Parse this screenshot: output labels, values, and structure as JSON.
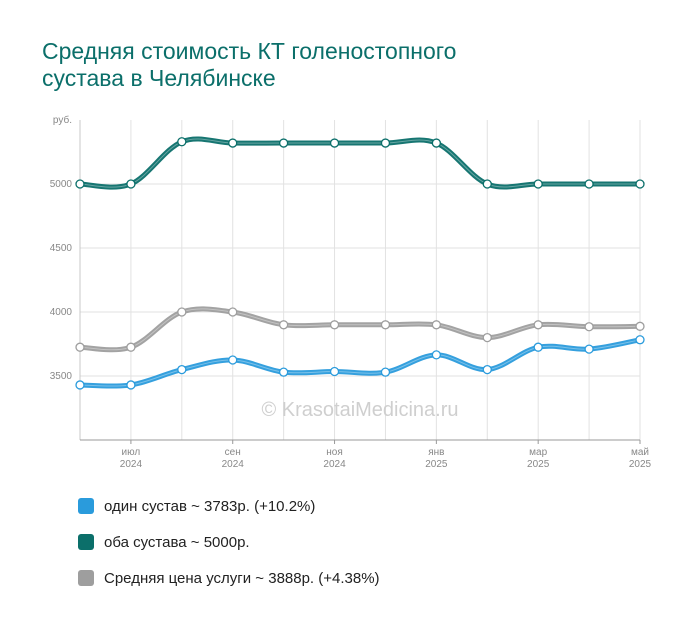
{
  "title_lines": [
    "Средняя стоимость КТ голеностопного",
    "сустава в Челябинске"
  ],
  "watermark": "© KrasotaiMedicina.ru",
  "chart_data": {
    "type": "line",
    "ylabel": "руб.",
    "ylim": [
      3000,
      5500
    ],
    "yticks": [
      3500,
      4000,
      4500,
      5000
    ],
    "grid": true,
    "x": [
      "2024-06",
      "2024-07",
      "2024-08",
      "2024-09",
      "2024-10",
      "2024-11",
      "2024-12",
      "2025-01",
      "2025-02",
      "2025-03",
      "2025-04",
      "2025-05"
    ],
    "xtick_labels": [
      {
        "month": "июл",
        "year": "2024",
        "index": 1
      },
      {
        "month": "сен",
        "year": "2024",
        "index": 3
      },
      {
        "month": "ноя",
        "year": "2024",
        "index": 5
      },
      {
        "month": "янв",
        "year": "2025",
        "index": 7
      },
      {
        "month": "мар",
        "year": "2025",
        "index": 9
      },
      {
        "month": "май",
        "year": "2025",
        "index": 11
      }
    ],
    "series": [
      {
        "name": "один сустав",
        "color": "#2a9bdc",
        "values": [
          3430,
          3430,
          3550,
          3625,
          3530,
          3535,
          3530,
          3665,
          3550,
          3725,
          3710,
          3783
        ]
      },
      {
        "name": "оба сустава",
        "color": "#0b6f6a",
        "values": [
          5000,
          5000,
          5330,
          5320,
          5320,
          5320,
          5320,
          5320,
          5000,
          5000,
          5000,
          5000
        ]
      },
      {
        "name": "Средняя цена услуги",
        "color": "#9e9e9e",
        "values": [
          3725,
          3725,
          4000,
          4000,
          3900,
          3900,
          3900,
          3900,
          3800,
          3900,
          3885,
          3888
        ]
      }
    ]
  },
  "legend": [
    {
      "label": "один сустав ~ 3783р. (+10.2%)",
      "color": "#2a9bdc"
    },
    {
      "label": "оба сустава ~ 5000р.",
      "color": "#0b6f6a"
    },
    {
      "label": "Средняя цена услуги ~ 3888р. (+4.38%)",
      "color": "#9e9e9e"
    }
  ]
}
